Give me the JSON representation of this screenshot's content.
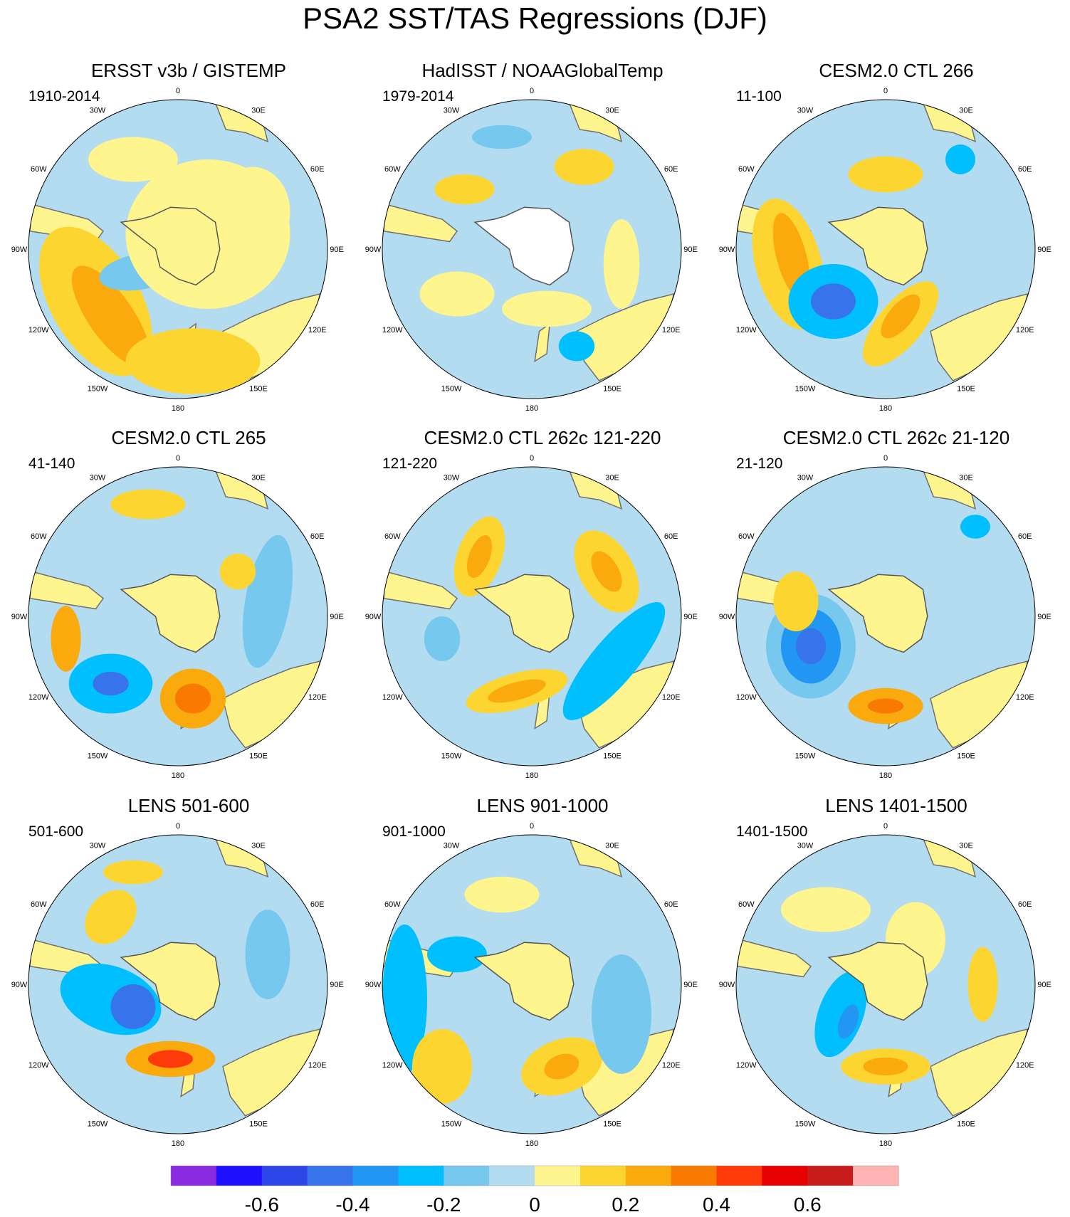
{
  "title": "PSA2 SST/TAS Regressions (DJF)",
  "longitude_labels": [
    "0",
    "30E",
    "60E",
    "90E",
    "120E",
    "150E",
    "180",
    "150W",
    "120W",
    "90W",
    "60W",
    "30W"
  ],
  "panels": [
    {
      "title": "ERSST v3b / GISTEMP",
      "years": "1910-2014",
      "antarctica_masked": false
    },
    {
      "title": "HadISST / NOAAGlobalTemp",
      "years": "1979-2014",
      "antarctica_masked": true
    },
    {
      "title": "CESM2.0 CTL 266",
      "years": "11-100",
      "antarctica_masked": false
    },
    {
      "title": "CESM2.0 CTL 265",
      "years": "41-140",
      "antarctica_masked": false
    },
    {
      "title": "CESM2.0 CTL 262c 121-220",
      "years": "121-220",
      "antarctica_masked": false
    },
    {
      "title": "CESM2.0 CTL 262c 21-120",
      "years": "21-120",
      "antarctica_masked": false
    },
    {
      "title": "LENS 501-600",
      "years": "501-600",
      "antarctica_masked": false
    },
    {
      "title": "LENS 901-1000",
      "years": "901-1000",
      "antarctica_masked": false
    },
    {
      "title": "LENS 1401-1500",
      "years": "1401-1500",
      "antarctica_masked": false
    }
  ],
  "colorbar": {
    "colors": [
      "#8a2be2",
      "#1e0fff",
      "#2c46e8",
      "#3773ea",
      "#2196f3",
      "#00bfff",
      "#77c8ee",
      "#b3dcf0",
      "#fff58f",
      "#fdd531",
      "#fbaa0e",
      "#f97a00",
      "#ff3a0a",
      "#e60000",
      "#c91c1c",
      "#ffb3b3"
    ],
    "tick_labels": [
      "-0.6",
      "-0.4",
      "-0.2",
      "0",
      "0.2",
      "0.4",
      "0.6"
    ]
  }
}
